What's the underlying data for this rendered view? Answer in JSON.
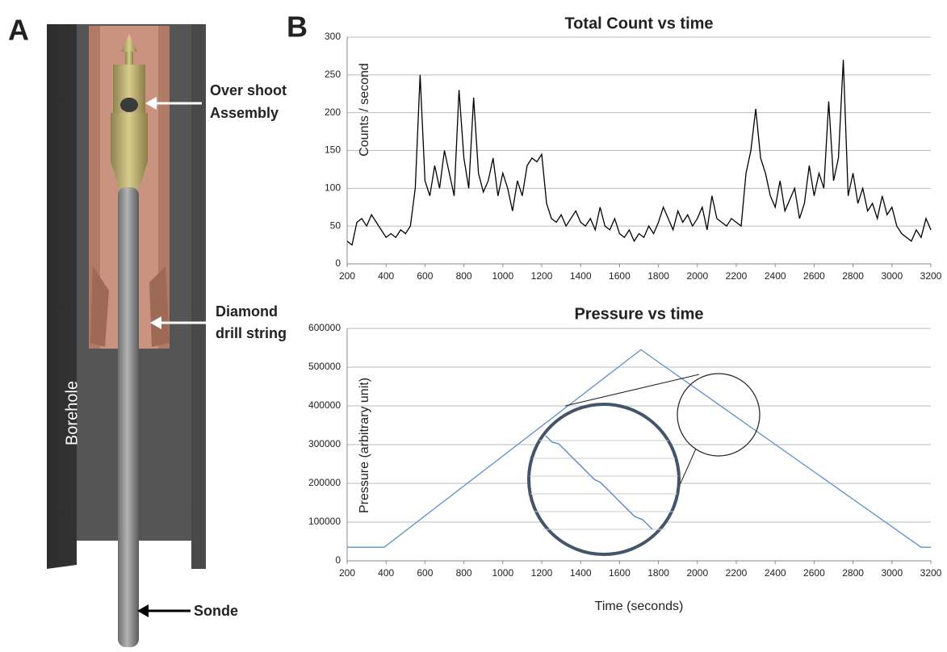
{
  "panel_a": {
    "letter": "A",
    "overshoot": [
      "Over shoot",
      "Assembly"
    ],
    "drill": [
      "Diamond",
      "drill string"
    ],
    "sonde": "Sonde",
    "borehole": "Borehole"
  },
  "panel_b": {
    "letter": "B"
  },
  "chart_data": [
    {
      "type": "line",
      "title": "Total Count vs time",
      "ylabel": "Counts / second",
      "color": "#000000",
      "xlim": [
        200,
        3200
      ],
      "xticks": [
        200,
        400,
        600,
        800,
        1000,
        1200,
        1400,
        1600,
        1800,
        2000,
        2200,
        2400,
        2600,
        2800,
        3000,
        3200
      ],
      "ylim": [
        0,
        300
      ],
      "yticks": [
        0,
        50,
        100,
        150,
        200,
        250,
        300
      ],
      "grid": true,
      "x": [
        200,
        225,
        250,
        275,
        300,
        325,
        350,
        375,
        400,
        425,
        450,
        475,
        500,
        525,
        550,
        575,
        600,
        625,
        650,
        675,
        700,
        725,
        750,
        775,
        800,
        825,
        850,
        875,
        900,
        925,
        950,
        975,
        1000,
        1025,
        1050,
        1075,
        1100,
        1125,
        1150,
        1175,
        1200,
        1225,
        1250,
        1275,
        1300,
        1325,
        1350,
        1375,
        1400,
        1425,
        1450,
        1475,
        1500,
        1525,
        1550,
        1575,
        1600,
        1625,
        1650,
        1675,
        1700,
        1725,
        1750,
        1775,
        1800,
        1825,
        1850,
        1875,
        1900,
        1925,
        1950,
        1975,
        2000,
        2025,
        2050,
        2075,
        2100,
        2125,
        2150,
        2175,
        2200,
        2225,
        2250,
        2275,
        2300,
        2325,
        2350,
        2375,
        2400,
        2425,
        2450,
        2475,
        2500,
        2525,
        2550,
        2575,
        2600,
        2625,
        2650,
        2675,
        2700,
        2725,
        2750,
        2775,
        2800,
        2825,
        2850,
        2875,
        2900,
        2925,
        2950,
        2975,
        3000,
        3025,
        3050,
        3075,
        3100,
        3125,
        3150,
        3175,
        3200
      ],
      "values": [
        30,
        25,
        55,
        60,
        50,
        65,
        55,
        45,
        35,
        40,
        35,
        45,
        40,
        50,
        100,
        250,
        110,
        90,
        130,
        100,
        150,
        120,
        90,
        230,
        140,
        100,
        220,
        120,
        95,
        110,
        140,
        90,
        120,
        100,
        70,
        110,
        90,
        130,
        140,
        135,
        145,
        80,
        60,
        55,
        65,
        50,
        60,
        70,
        55,
        50,
        60,
        45,
        75,
        50,
        45,
        60,
        40,
        35,
        45,
        30,
        40,
        35,
        50,
        40,
        55,
        75,
        60,
        45,
        70,
        55,
        65,
        50,
        60,
        75,
        45,
        90,
        60,
        55,
        50,
        60,
        55,
        50,
        120,
        150,
        205,
        140,
        120,
        90,
        75,
        110,
        70,
        85,
        100,
        60,
        80,
        130,
        90,
        120,
        100,
        215,
        110,
        140,
        270,
        90,
        120,
        80,
        100,
        70,
        80,
        60,
        90,
        65,
        75,
        50,
        40,
        35,
        30,
        45,
        35,
        60,
        45
      ]
    },
    {
      "type": "line",
      "title": "Pressure vs time",
      "ylabel": "Pressure (arbitrary unit)",
      "xlabel": "Time (seconds)",
      "color": "#5b8fd0",
      "xlim": [
        200,
        3200
      ],
      "xticks": [
        200,
        400,
        600,
        800,
        1000,
        1200,
        1400,
        1600,
        1800,
        2000,
        2200,
        2400,
        2600,
        2800,
        3000,
        3200
      ],
      "ylim": [
        0,
        600000
      ],
      "yticks": [
        0,
        100000,
        200000,
        300000,
        400000,
        500000,
        600000
      ],
      "grid": true,
      "x": [
        200,
        390,
        1710,
        3150,
        3200
      ],
      "values": [
        35000,
        35000,
        545000,
        35000,
        35000
      ]
    }
  ]
}
